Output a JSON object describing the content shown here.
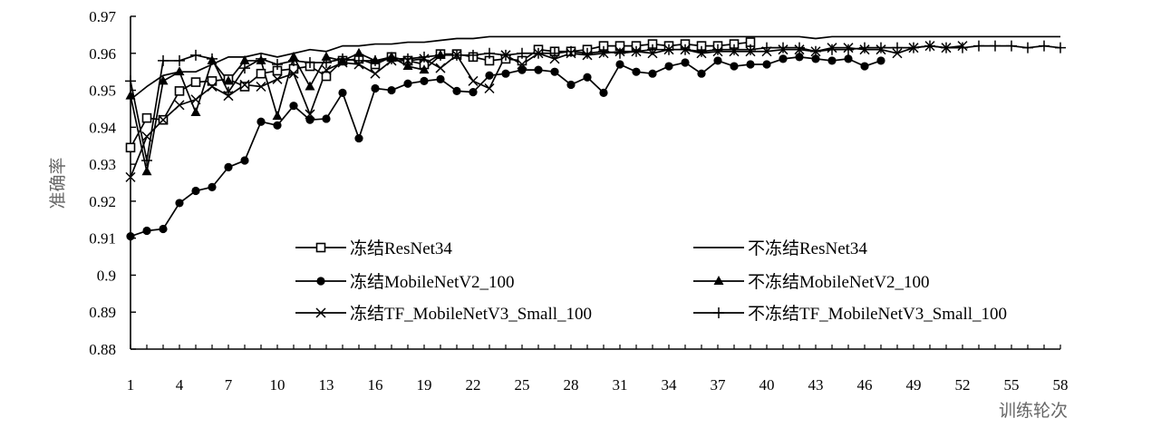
{
  "chart_data": {
    "type": "line",
    "title": "",
    "xlabel": "训练轮次",
    "ylabel": "准确率",
    "xlim": [
      1,
      58
    ],
    "ylim": [
      0.88,
      0.97
    ],
    "x_ticks": [
      "1",
      "4",
      "7",
      "10",
      "13",
      "16",
      "19",
      "22",
      "25",
      "28",
      "31",
      "34",
      "37",
      "40",
      "43",
      "46",
      "49",
      "52",
      "55",
      "58"
    ],
    "y_ticks": [
      "0.88",
      "0.89",
      "0.9",
      "0.91",
      "0.92",
      "0.93",
      "0.94",
      "0.95",
      "0.96",
      "0.97"
    ],
    "grid": false,
    "legend_position": "inside-bottom",
    "series": [
      {
        "name": "冻结ResNet34",
        "marker": "square-open",
        "x": [
          1,
          2,
          3,
          4,
          5,
          6,
          7,
          8,
          9,
          10,
          11,
          12,
          13,
          14,
          15,
          16,
          17,
          18,
          19,
          20,
          21,
          22,
          23,
          24,
          25,
          26,
          27,
          28,
          29,
          30,
          31,
          32,
          33,
          34,
          35,
          36,
          37,
          38,
          39
        ],
        "values": [
          0.9345,
          0.9425,
          0.942,
          0.9498,
          0.9522,
          0.9525,
          0.953,
          0.951,
          0.9545,
          0.9553,
          0.9558,
          0.9565,
          0.9538,
          0.958,
          0.9585,
          0.957,
          0.959,
          0.958,
          0.957,
          0.9598,
          0.9598,
          0.959,
          0.958,
          0.9585,
          0.958,
          0.961,
          0.9605,
          0.9605,
          0.961,
          0.962,
          0.962,
          0.962,
          0.9625,
          0.962,
          0.9625,
          0.962,
          0.962,
          0.9625,
          0.963
        ]
      },
      {
        "name": "不冻结ResNet34",
        "marker": "none",
        "x": [
          1,
          2,
          3,
          4,
          5,
          6,
          7,
          8,
          9,
          10,
          11,
          12,
          13,
          14,
          15,
          16,
          17,
          18,
          19,
          20,
          21,
          22,
          23,
          24,
          25,
          26,
          27,
          28,
          29,
          30,
          31,
          32,
          33,
          34,
          35,
          36,
          37,
          38,
          39,
          40,
          41,
          42,
          43,
          44,
          45,
          46,
          47,
          48,
          49,
          50,
          51,
          52,
          53,
          54,
          55,
          56,
          57,
          58
        ],
        "values": [
          0.9475,
          0.951,
          0.954,
          0.955,
          0.955,
          0.957,
          0.959,
          0.959,
          0.96,
          0.959,
          0.96,
          0.961,
          0.9605,
          0.962,
          0.962,
          0.9625,
          0.9625,
          0.963,
          0.963,
          0.9635,
          0.964,
          0.964,
          0.9645,
          0.9645,
          0.9645,
          0.9645,
          0.9645,
          0.9645,
          0.9645,
          0.9645,
          0.9645,
          0.9645,
          0.9645,
          0.9645,
          0.9645,
          0.9645,
          0.9645,
          0.9645,
          0.9645,
          0.9645,
          0.9645,
          0.9645,
          0.964,
          0.9645,
          0.9645,
          0.9645,
          0.9645,
          0.9645,
          0.9645,
          0.9645,
          0.9645,
          0.9645,
          0.9645,
          0.9645,
          0.9645,
          0.9645,
          0.9645,
          0.9645
        ]
      },
      {
        "name": "冻结MobileNetV2_100",
        "marker": "circle-filled",
        "x": [
          1,
          2,
          3,
          4,
          5,
          6,
          7,
          8,
          9,
          10,
          11,
          12,
          13,
          14,
          15,
          16,
          17,
          18,
          19,
          20,
          21,
          22,
          23,
          24,
          25,
          26,
          27,
          28,
          29,
          30,
          31,
          32,
          33,
          34,
          35,
          36,
          37,
          38,
          39,
          40,
          41,
          42,
          43,
          44,
          45,
          46,
          47
        ],
        "values": [
          0.9105,
          0.912,
          0.9125,
          0.9195,
          0.9228,
          0.9238,
          0.9292,
          0.931,
          0.9415,
          0.9405,
          0.9458,
          0.942,
          0.9423,
          0.9493,
          0.937,
          0.9505,
          0.95,
          0.9518,
          0.9525,
          0.953,
          0.9498,
          0.9495,
          0.954,
          0.9545,
          0.9555,
          0.9555,
          0.955,
          0.9515,
          0.9535,
          0.9493,
          0.957,
          0.955,
          0.9545,
          0.9565,
          0.9575,
          0.9545,
          0.958,
          0.9565,
          0.957,
          0.957,
          0.9585,
          0.959,
          0.9585,
          0.958,
          0.9585,
          0.9565,
          0.958
        ]
      },
      {
        "name": "不冻结MobileNetV2_100",
        "marker": "triangle-filled",
        "x": [
          1,
          2,
          3,
          4,
          5,
          6,
          7,
          8,
          9,
          10,
          11,
          12,
          13,
          14,
          15,
          16,
          17,
          18,
          19,
          20
        ],
        "values": [
          0.9485,
          0.928,
          0.9525,
          0.955,
          0.944,
          0.958,
          0.9525,
          0.958,
          0.958,
          0.943,
          0.959,
          0.951,
          0.959,
          0.958,
          0.96,
          0.958,
          0.959,
          0.9565,
          0.9555,
          0.9595
        ]
      },
      {
        "name": "冻结TF_MobileNetV3_Small_100",
        "marker": "x",
        "x": [
          1,
          2,
          3,
          4,
          5,
          6,
          7,
          8,
          9,
          10,
          11,
          12,
          13,
          14,
          15,
          16,
          17,
          18,
          19,
          20,
          21,
          22,
          23,
          24,
          25,
          26,
          27,
          28,
          29,
          30,
          31,
          32,
          33,
          34,
          35,
          36,
          37,
          38,
          39,
          40,
          41,
          42,
          43,
          44,
          45,
          46,
          47,
          48,
          49,
          50,
          51,
          52
        ],
        "values": [
          0.9265,
          0.9375,
          0.942,
          0.946,
          0.9475,
          0.951,
          0.9485,
          0.9515,
          0.951,
          0.953,
          0.9545,
          0.9435,
          0.9555,
          0.9575,
          0.957,
          0.9545,
          0.958,
          0.958,
          0.9585,
          0.956,
          0.9595,
          0.9525,
          0.9505,
          0.9595,
          0.957,
          0.96,
          0.9585,
          0.96,
          0.9595,
          0.96,
          0.9605,
          0.9605,
          0.96,
          0.961,
          0.961,
          0.96,
          0.9605,
          0.9605,
          0.9605,
          0.9605,
          0.961,
          0.961,
          0.9605,
          0.9615,
          0.9615,
          0.961,
          0.961,
          0.96,
          0.9615,
          0.962,
          0.9615,
          0.962
        ]
      },
      {
        "name": "不冻结TF_MobileNetV3_Small_100",
        "marker": "plus",
        "x": [
          1,
          2,
          3,
          4,
          5,
          6,
          7,
          8,
          9,
          10,
          11,
          12,
          13,
          14,
          15,
          16,
          17,
          18,
          19,
          20,
          21,
          22,
          23,
          24,
          25,
          26,
          27,
          28,
          29,
          30,
          31,
          32,
          33,
          34,
          35,
          36,
          37,
          38,
          39,
          40,
          41,
          42,
          43,
          44,
          45,
          46,
          47,
          48,
          49,
          50,
          51,
          52,
          53,
          54,
          55,
          56,
          57,
          58
        ],
        "values": [
          0.9525,
          0.931,
          0.958,
          0.958,
          0.9595,
          0.9585,
          0.9495,
          0.956,
          0.9585,
          0.957,
          0.958,
          0.9575,
          0.9575,
          0.9585,
          0.958,
          0.958,
          0.9585,
          0.9585,
          0.959,
          0.9595,
          0.9595,
          0.9595,
          0.96,
          0.9595,
          0.96,
          0.96,
          0.96,
          0.9605,
          0.96,
          0.9605,
          0.96,
          0.9605,
          0.961,
          0.961,
          0.961,
          0.9605,
          0.961,
          0.961,
          0.961,
          0.9615,
          0.9615,
          0.9615,
          0.9605,
          0.961,
          0.961,
          0.9615,
          0.9615,
          0.9615,
          0.9615,
          0.962,
          0.9615,
          0.9615,
          0.962,
          0.962,
          0.962,
          0.9615,
          0.962,
          0.9615
        ]
      }
    ]
  }
}
